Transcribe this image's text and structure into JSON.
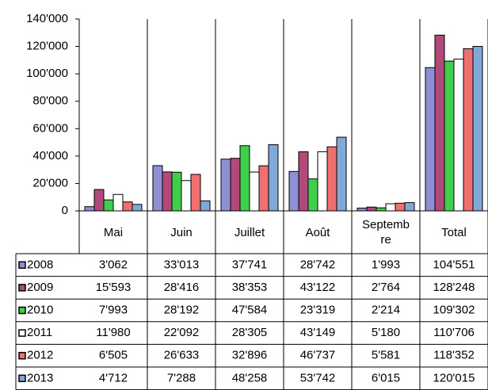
{
  "chart_data": {
    "type": "bar",
    "categories": [
      "Mai",
      "Juin",
      "Juillet",
      "Août",
      "Septembre",
      "Total"
    ],
    "series": [
      {
        "name": "2008",
        "color": "#8f8fd6",
        "values": [
          3062,
          33013,
          37741,
          28742,
          1993,
          104551
        ],
        "value_labels": [
          "3'062",
          "33'013",
          "37'741",
          "28'742",
          "1'993",
          "104'551"
        ]
      },
      {
        "name": "2009",
        "color": "#b04a7a",
        "values": [
          15593,
          28416,
          38353,
          43122,
          2764,
          128248
        ],
        "value_labels": [
          "15'593",
          "28'416",
          "38'353",
          "43'122",
          "2'764",
          "128'248"
        ]
      },
      {
        "name": "2010",
        "color": "#3fcf4a",
        "values": [
          7993,
          28192,
          47584,
          23319,
          2214,
          109302
        ],
        "value_labels": [
          "7'993",
          "28'192",
          "47'584",
          "23'319",
          "2'214",
          "109'302"
        ]
      },
      {
        "name": "2011",
        "color": "#ffffff",
        "values": [
          11980,
          22092,
          28305,
          43149,
          5180,
          110706
        ],
        "value_labels": [
          "11'980",
          "22'092",
          "28'305",
          "43'149",
          "5'180",
          "110'706"
        ]
      },
      {
        "name": "2012",
        "color": "#f07070",
        "values": [
          6505,
          26633,
          32896,
          46737,
          5581,
          118352
        ],
        "value_labels": [
          "6'505",
          "26'633",
          "32'896",
          "46'737",
          "5'581",
          "118'352"
        ]
      },
      {
        "name": "2013",
        "color": "#7fa9d8",
        "values": [
          4712,
          7288,
          48258,
          53742,
          6015,
          120015
        ],
        "value_labels": [
          "4'712",
          "7'288",
          "48'258",
          "53'742",
          "6'015",
          "120'015"
        ]
      }
    ],
    "ylim": [
      0,
      140000
    ],
    "yticks": [
      {
        "value": 0,
        "label": "0"
      },
      {
        "value": 20000,
        "label": "20'000"
      },
      {
        "value": 40000,
        "label": "40'000"
      },
      {
        "value": 60000,
        "label": "60'000"
      },
      {
        "value": 80000,
        "label": "80'000"
      },
      {
        "value": 100000,
        "label": "100'000"
      },
      {
        "value": 120000,
        "label": "120'000"
      },
      {
        "value": 140000,
        "label": "140'000"
      }
    ],
    "grid": false
  }
}
